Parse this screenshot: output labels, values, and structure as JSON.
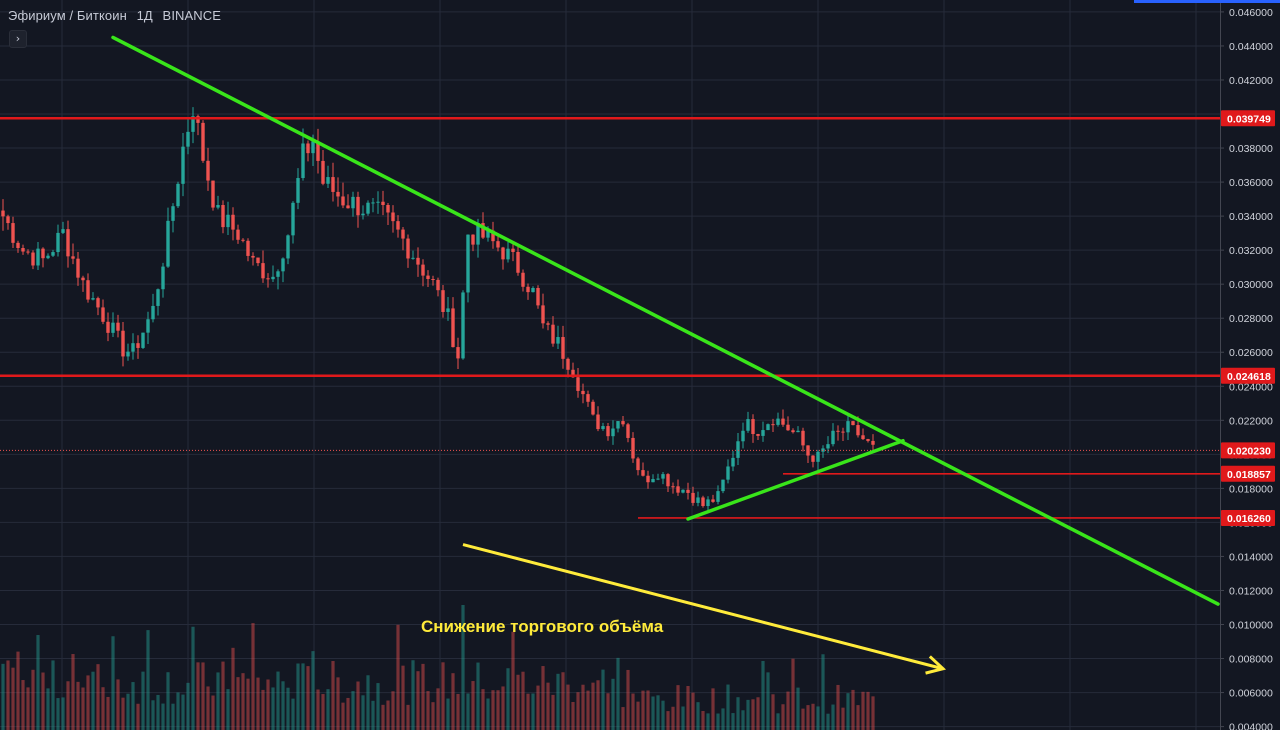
{
  "header": {
    "pair": "Эфириум / Биткоин",
    "interval": "1Д",
    "exchange": "BINANCE",
    "expand_glyph": "›"
  },
  "colors": {
    "background": "#131722",
    "grid": "#262b3a",
    "up_candle": "#26a69a",
    "down_candle": "#ef5350",
    "level_line": "#e0191b",
    "trend_line": "#39e51a",
    "volume_arrow": "#ffeb3b",
    "accent": "#2962ff"
  },
  "chart_data": {
    "type": "candlestick",
    "symbol": "ETH/BTC",
    "timeframe": "1D",
    "y_axis": {
      "ticks": [
        "0.046000",
        "0.044000",
        "0.042000",
        "0.040000",
        "0.038000",
        "0.036000",
        "0.034000",
        "0.032000",
        "0.030000",
        "0.028000",
        "0.026000",
        "0.024000",
        "0.022000",
        "0.020000",
        "0.018000",
        "0.016000",
        "0.014000",
        "0.012000",
        "0.010000",
        "0.008000",
        "0.006000",
        "0.004000"
      ],
      "ylim": [
        0.0038,
        0.0467
      ],
      "side": "right"
    },
    "price_path": [
      [
        0,
        0.034
      ],
      [
        4,
        0.032
      ],
      [
        8,
        0.0314
      ],
      [
        12,
        0.033
      ],
      [
        16,
        0.03
      ],
      [
        20,
        0.0282
      ],
      [
        24,
        0.0262
      ],
      [
        26,
        0.026
      ],
      [
        30,
        0.0285
      ],
      [
        33,
        0.033
      ],
      [
        36,
        0.038
      ],
      [
        38,
        0.0405
      ],
      [
        40,
        0.0375
      ],
      [
        43,
        0.034
      ],
      [
        47,
        0.033
      ],
      [
        50,
        0.0312
      ],
      [
        54,
        0.0305
      ],
      [
        57,
        0.033
      ],
      [
        60,
        0.0375
      ],
      [
        62,
        0.0385
      ],
      [
        64,
        0.036
      ],
      [
        68,
        0.035
      ],
      [
        72,
        0.0345
      ],
      [
        76,
        0.034
      ],
      [
        79,
        0.033
      ],
      [
        82,
        0.0318
      ],
      [
        86,
        0.03
      ],
      [
        89,
        0.028
      ],
      [
        91,
        0.0258
      ],
      [
        93,
        0.033
      ],
      [
        96,
        0.0328
      ],
      [
        100,
        0.032
      ],
      [
        103,
        0.031
      ],
      [
        106,
        0.0295
      ],
      [
        108,
        0.0275
      ],
      [
        111,
        0.0265
      ],
      [
        114,
        0.025
      ],
      [
        116,
        0.0235
      ],
      [
        118,
        0.022
      ],
      [
        121,
        0.0215
      ],
      [
        124,
        0.0222
      ],
      [
        126,
        0.02
      ],
      [
        128,
        0.0185
      ],
      [
        131,
        0.019
      ],
      [
        134,
        0.0182
      ],
      [
        137,
        0.0178
      ],
      [
        140,
        0.017
      ],
      [
        143,
        0.0175
      ],
      [
        146,
        0.02
      ],
      [
        148,
        0.0218
      ],
      [
        151,
        0.0215
      ],
      [
        154,
        0.0222
      ],
      [
        156,
        0.0218
      ],
      [
        159,
        0.021
      ],
      [
        161,
        0.02
      ],
      [
        163,
        0.0198
      ],
      [
        166,
        0.021
      ],
      [
        169,
        0.0215
      ],
      [
        171,
        0.0212
      ],
      [
        174,
        0.0203
      ]
    ],
    "levels": [
      {
        "price": 0.039749,
        "label": "0.039749",
        "width": "full"
      },
      {
        "price": 0.024618,
        "label": "0.024618",
        "width": "full"
      },
      {
        "price": 0.02023,
        "label": "0.020230",
        "width": "current",
        "style": "dotted"
      },
      {
        "price": 0.018857,
        "label": "0.018857",
        "width": "partial"
      },
      {
        "price": 0.01626,
        "label": "0.016260",
        "width": "partial"
      }
    ],
    "trendlines": [
      {
        "name": "descending-resistance",
        "from": {
          "x": 22,
          "y": 0.0445
        },
        "to": {
          "x": 243,
          "y": 0.0112
        }
      },
      {
        "name": "ascending-support",
        "from": {
          "x": 137,
          "y": 0.0162
        },
        "to": {
          "x": 180,
          "y": 0.0208
        }
      }
    ],
    "volume_trend_arrow": {
      "from": {
        "x": 92,
        "y": 0.0147
      },
      "to": {
        "x": 188,
        "y": 0.0074
      }
    },
    "volume_annotation": "Снижение торгового объёма"
  }
}
